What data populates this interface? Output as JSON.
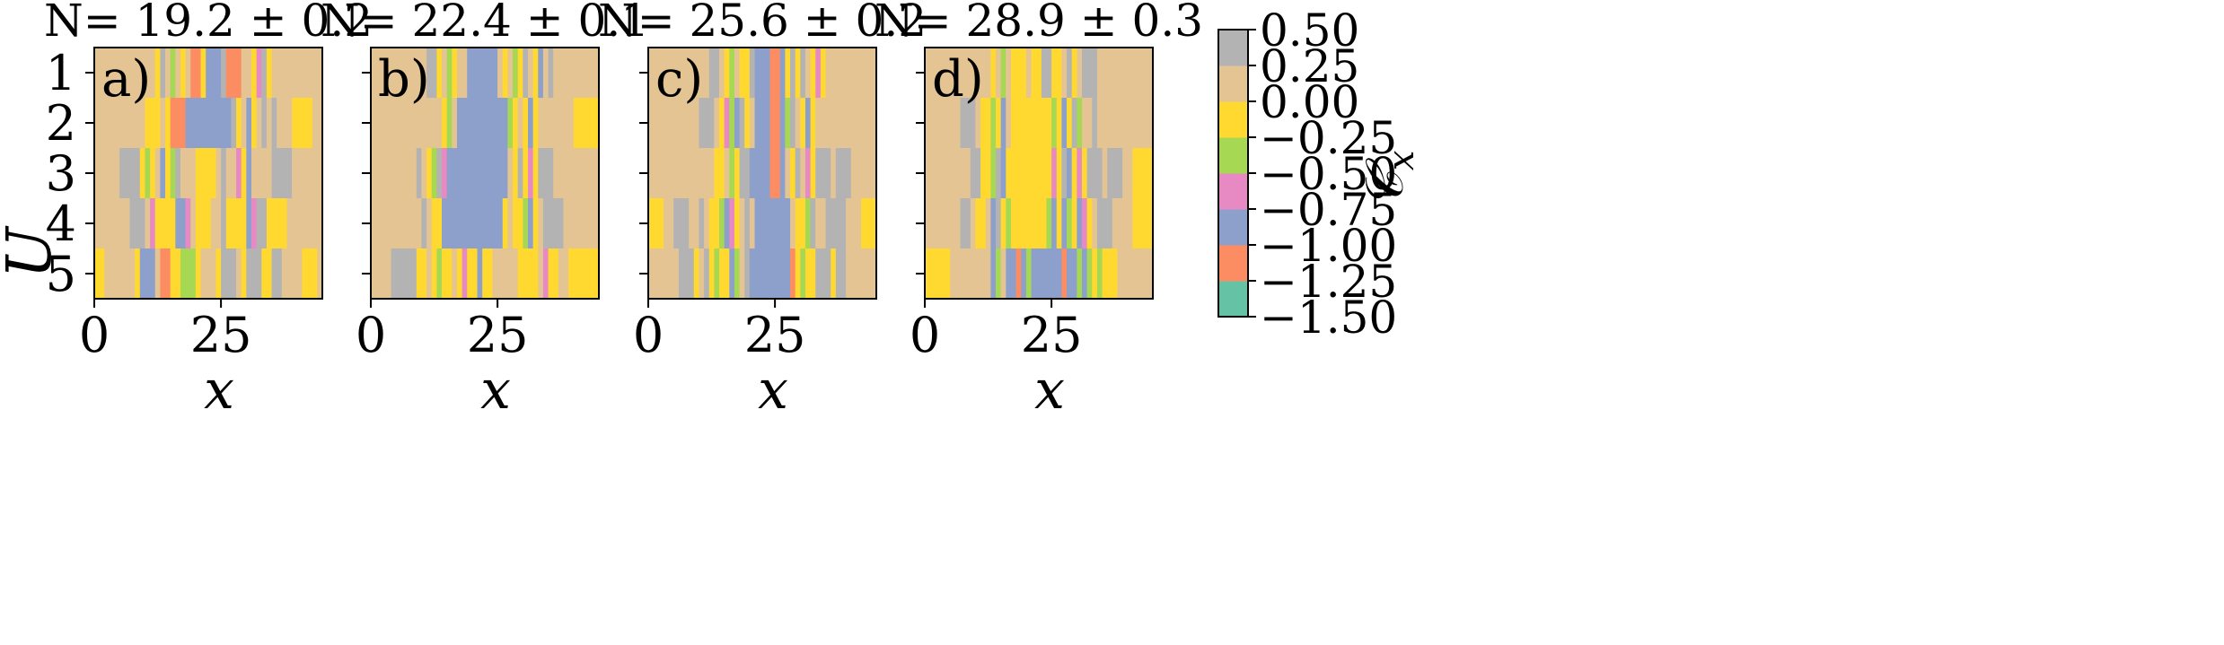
{
  "chart_data": {
    "type": "heatmap",
    "panels": [
      {
        "title": "N̄= 19.2 ± 0.2",
        "label": "a)",
        "rows": [
          [
            0.1,
            0.1,
            0.1,
            0.1,
            0.1,
            0.1,
            0.1,
            0.1,
            0.1,
            0.1,
            0.1,
            0.1,
            -0.25,
            0.35,
            0.1,
            -0.5,
            0.1,
            -0.25,
            0.1,
            -1.1,
            -1.1,
            -0.25,
            -0.85,
            -0.85,
            -0.85,
            0.35,
            -1.1,
            -1.1,
            -1.1,
            0.1,
            0.1,
            -0.25,
            -0.6,
            0.35,
            -0.25,
            0.1,
            0.1,
            0.1,
            0.1,
            0.1,
            0.1,
            0.1,
            0.1,
            0.1,
            0.1
          ],
          [
            0.1,
            0.1,
            0.1,
            0.1,
            0.1,
            0.1,
            0.1,
            0.1,
            0.1,
            0.1,
            -0.1,
            -0.1,
            -0.1,
            0.1,
            -0.1,
            -1.1,
            -1.1,
            -1.1,
            -0.85,
            -0.85,
            -0.85,
            -0.85,
            -0.85,
            -0.85,
            -0.85,
            -0.85,
            -0.85,
            0.35,
            -0.1,
            0.1,
            -0.85,
            -0.25,
            0.1,
            0.35,
            0.1,
            0.35,
            0.1,
            0.1,
            0.1,
            -0.1,
            -0.1,
            -0.1,
            -0.1,
            0.1,
            0.1
          ],
          [
            0.1,
            0.1,
            0.1,
            0.1,
            0.1,
            0.35,
            0.35,
            0.35,
            0.35,
            -0.1,
            -0.5,
            -0.25,
            0.1,
            -0.85,
            -0.1,
            -0.5,
            0.35,
            0.1,
            0.1,
            0.1,
            -0.1,
            -0.1,
            -0.25,
            -0.1,
            0.1,
            0.35,
            0.1,
            0.1,
            -0.6,
            -0.25,
            -0.85,
            0.1,
            0.1,
            0.1,
            0.1,
            0.35,
            0.35,
            0.35,
            0.35,
            0.1,
            0.1,
            0.1,
            0.1,
            0.1,
            0.1
          ],
          [
            0.1,
            0.1,
            0.1,
            0.1,
            0.1,
            0.1,
            0.1,
            0.35,
            0.35,
            0.35,
            0.1,
            -0.6,
            -0.1,
            -0.25,
            -0.1,
            -0.1,
            -0.85,
            -0.85,
            -0.6,
            0.1,
            -0.1,
            -0.25,
            -0.1,
            0.1,
            0.1,
            0.35,
            -0.1,
            -0.1,
            -0.1,
            -0.25,
            -0.85,
            -0.6,
            0.35,
            0.35,
            -0.1,
            -0.1,
            -0.1,
            -0.1,
            0.1,
            0.1,
            0.1,
            0.1,
            0.1,
            0.1,
            0.1
          ],
          [
            -0.1,
            -0.1,
            0.1,
            0.1,
            0.1,
            0.1,
            0.1,
            0.1,
            -0.25,
            -0.85,
            -0.85,
            -0.85,
            0.1,
            -1.1,
            -1.1,
            -0.1,
            -0.25,
            -0.5,
            -0.5,
            -0.5,
            -0.1,
            0.1,
            0.1,
            0.1,
            -0.1,
            0.35,
            0.35,
            0.35,
            0.1,
            -0.1,
            0.35,
            0.35,
            0.35,
            -0.1,
            -0.25,
            0.35,
            0.35,
            0.1,
            0.1,
            0.1,
            0.1,
            -0.1,
            -0.1,
            -0.1,
            0.1
          ]
        ]
      },
      {
        "title": "N̄= 22.4 ± 0.1",
        "label": "b)",
        "rows": [
          [
            0.1,
            0.1,
            0.1,
            0.1,
            0.1,
            0.1,
            0.1,
            0.1,
            0.1,
            0.1,
            0.1,
            0.35,
            0.35,
            -0.1,
            0.1,
            -0.5,
            -0.1,
            0.1,
            0.1,
            -0.85,
            -0.85,
            -0.85,
            -0.85,
            -0.85,
            -0.85,
            0.1,
            -0.1,
            0.1,
            -0.5,
            -0.1,
            0.35,
            0.1,
            -0.25,
            -0.85,
            0.1,
            0.35,
            0.1,
            0.1,
            0.1,
            0.1,
            0.1,
            0.1,
            0.1,
            0.1,
            0.1
          ],
          [
            0.1,
            0.1,
            0.1,
            0.1,
            0.1,
            0.1,
            0.1,
            0.1,
            0.1,
            0.1,
            0.1,
            0.1,
            0.1,
            0.1,
            -0.1,
            -0.5,
            0.1,
            -0.85,
            -0.85,
            -0.85,
            -0.85,
            -0.85,
            -0.85,
            -0.85,
            -0.85,
            -0.85,
            -0.85,
            -0.5,
            -0.1,
            0.1,
            -0.1,
            -0.85,
            -0.25,
            0.1,
            0.1,
            0.1,
            0.1,
            0.1,
            0.1,
            0.1,
            -0.1,
            -0.1,
            -0.1,
            -0.1,
            -0.1
          ],
          [
            0.1,
            0.1,
            0.1,
            0.1,
            0.1,
            0.1,
            0.1,
            0.1,
            0.1,
            0.35,
            0.1,
            -0.25,
            -0.5,
            0.35,
            -0.6,
            -0.85,
            -0.85,
            -0.85,
            -0.85,
            -0.85,
            -0.85,
            -0.85,
            -0.85,
            -0.85,
            -0.85,
            -0.85,
            -0.85,
            0.1,
            -0.25,
            0.35,
            -0.1,
            -0.6,
            -0.1,
            0.35,
            0.35,
            0.35,
            0.1,
            0.1,
            0.1,
            0.1,
            0.1,
            0.1,
            0.1,
            0.1,
            0.1
          ],
          [
            0.1,
            0.1,
            0.1,
            0.1,
            0.1,
            0.1,
            0.1,
            0.1,
            0.1,
            0.1,
            0.35,
            0.1,
            -0.1,
            -0.25,
            -0.85,
            -0.85,
            -0.85,
            -0.85,
            -0.85,
            -0.85,
            -0.85,
            -0.85,
            -0.85,
            -0.85,
            -0.85,
            -0.85,
            -0.1,
            0.1,
            -0.1,
            -0.1,
            -0.5,
            -0.85,
            -0.1,
            0.1,
            0.35,
            0.35,
            0.35,
            0.35,
            0.1,
            0.1,
            0.1,
            0.1,
            0.1,
            0.1,
            0.1
          ],
          [
            0.1,
            0.1,
            0.1,
            0.1,
            0.35,
            0.35,
            0.35,
            0.35,
            0.35,
            -0.25,
            -0.25,
            0.1,
            -0.25,
            -0.5,
            -0.25,
            -0.1,
            0.1,
            -0.25,
            -0.6,
            -0.1,
            -0.25,
            -0.85,
            -0.1,
            -0.1,
            0.1,
            0.1,
            0.1,
            0.1,
            0.1,
            -0.1,
            -0.1,
            -0.25,
            -0.1,
            0.1,
            -0.6,
            -0.1,
            -0.25,
            0.1,
            0.1,
            -0.1,
            -0.1,
            -0.1,
            -0.1,
            -0.1,
            -0.1
          ]
        ]
      },
      {
        "title": "N̄= 25.6 ± 0.2",
        "label": "c)",
        "rows": [
          [
            0.1,
            0.1,
            0.1,
            0.1,
            0.1,
            0.1,
            0.1,
            0.1,
            0.1,
            0.1,
            0.1,
            0.1,
            0.35,
            0.35,
            0.1,
            -0.1,
            -0.5,
            0.1,
            -0.25,
            -0.1,
            0.35,
            -0.85,
            -0.85,
            -0.85,
            -1.1,
            -1.1,
            -0.85,
            -0.25,
            0.35,
            -0.1,
            0.35,
            0.1,
            -0.25,
            -0.6,
            -0.1,
            0.1,
            0.1,
            0.1,
            0.1,
            0.1,
            0.1,
            0.1,
            0.1,
            0.1,
            0.1
          ],
          [
            0.1,
            0.1,
            0.1,
            0.1,
            0.1,
            0.1,
            0.1,
            0.1,
            0.1,
            0.1,
            0.35,
            0.35,
            0.35,
            0.1,
            -0.1,
            -0.6,
            -0.5,
            -0.85,
            0.35,
            -0.1,
            0.1,
            -0.85,
            -0.85,
            -0.85,
            -1.1,
            -1.1,
            -0.85,
            -0.5,
            0.35,
            0.1,
            -0.1,
            -0.85,
            -0.25,
            0.1,
            0.1,
            0.1,
            0.1,
            0.1,
            0.1,
            0.1,
            0.1,
            0.1,
            0.1,
            0.1,
            0.1
          ],
          [
            0.1,
            0.1,
            0.1,
            0.1,
            0.1,
            0.1,
            0.1,
            0.1,
            0.1,
            0.1,
            0.1,
            0.1,
            0.1,
            -0.1,
            -0.25,
            0.1,
            -0.5,
            -0.1,
            0.35,
            0.35,
            -0.85,
            -0.85,
            -0.85,
            -0.85,
            -1.1,
            -1.1,
            -0.85,
            0.1,
            -0.25,
            0.35,
            0.1,
            -0.6,
            -0.1,
            0.35,
            0.35,
            0.35,
            0.1,
            0.35,
            0.35,
            0.35,
            0.1,
            0.1,
            0.1,
            0.1,
            0.1
          ],
          [
            -0.1,
            -0.1,
            -0.1,
            0.1,
            0.1,
            0.35,
            0.35,
            0.35,
            0.1,
            0.1,
            0.35,
            0.1,
            -0.1,
            -0.25,
            -0.5,
            -0.85,
            -0.6,
            -0.1,
            0.1,
            0.35,
            0.1,
            -0.85,
            -0.85,
            -0.85,
            -0.85,
            -0.85,
            -0.85,
            -0.85,
            0.1,
            -0.25,
            -0.1,
            -0.5,
            0.35,
            0.1,
            0.1,
            0.35,
            0.35,
            0.35,
            0.35,
            0.1,
            0.1,
            0.1,
            -0.1,
            -0.1,
            -0.1
          ],
          [
            0.1,
            0.1,
            0.1,
            0.1,
            0.1,
            0.1,
            0.35,
            0.35,
            0.35,
            -0.1,
            0.1,
            0.35,
            -0.25,
            -0.5,
            -0.1,
            -0.25,
            -0.85,
            -0.5,
            0.1,
            0.35,
            -0.85,
            -0.85,
            -0.85,
            -0.85,
            -0.85,
            -0.85,
            -0.85,
            -0.85,
            -1.1,
            -0.1,
            -0.5,
            -0.25,
            -0.1,
            0.35,
            0.35,
            0.35,
            -0.1,
            0.35,
            0.35,
            0.1,
            0.1,
            0.1,
            0.1,
            0.1,
            0.1
          ]
        ]
      },
      {
        "title": "N̄= 28.9 ± 0.3",
        "label": "d)",
        "rows": [
          [
            0.1,
            0.1,
            0.1,
            0.1,
            0.1,
            0.1,
            0.1,
            0.1,
            0.1,
            0.1,
            0.1,
            0.1,
            0.1,
            -0.25,
            0.1,
            -0.5,
            0.1,
            -0.25,
            -0.25,
            -0.25,
            0.1,
            -0.25,
            -0.25,
            0.35,
            0.35,
            -0.1,
            -0.25,
            0.1,
            0.35,
            -0.1,
            0.1,
            0.35,
            0.35,
            0.35,
            0.1,
            0.1,
            0.1,
            0.1,
            0.1,
            0.1,
            0.1,
            0.1,
            0.1,
            0.1,
            0.1
          ],
          [
            0.1,
            0.1,
            0.1,
            0.1,
            0.1,
            0.1,
            0.1,
            0.35,
            0.35,
            0.35,
            0.1,
            -0.25,
            -0.1,
            -0.5,
            -0.25,
            -0.85,
            0.1,
            -0.1,
            -0.25,
            -0.25,
            -0.25,
            -0.25,
            -0.25,
            -0.1,
            -0.1,
            -0.5,
            -0.25,
            -0.85,
            -0.1,
            0.35,
            -0.5,
            0.1,
            0.1,
            0.35,
            0.1,
            0.1,
            0.1,
            0.1,
            0.1,
            0.1,
            0.1,
            0.1,
            0.1,
            0.1,
            0.1
          ],
          [
            0.1,
            0.1,
            0.1,
            0.1,
            0.1,
            0.1,
            0.1,
            0.1,
            0.1,
            0.35,
            0.35,
            -0.1,
            -0.25,
            -0.5,
            0.35,
            -0.85,
            -0.1,
            -0.1,
            -0.25,
            -0.25,
            -0.25,
            -0.1,
            -0.1,
            -0.25,
            -0.25,
            -0.6,
            -0.1,
            0.35,
            -0.85,
            -0.25,
            -0.6,
            -0.1,
            0.35,
            0.35,
            0.35,
            0.1,
            0.35,
            0.35,
            0.35,
            0.1,
            0.1,
            -0.1,
            -0.1,
            -0.1,
            -0.1
          ],
          [
            0.1,
            0.1,
            0.1,
            0.1,
            0.1,
            0.1,
            0.1,
            0.35,
            0.35,
            0.1,
            -0.1,
            -0.25,
            0.1,
            -0.85,
            0.35,
            -0.1,
            -0.5,
            -0.1,
            -0.25,
            -0.25,
            -0.25,
            -0.25,
            -0.25,
            -0.1,
            -0.5,
            -0.85,
            -0.25,
            -0.85,
            -0.5,
            -0.1,
            -0.85,
            -0.6,
            -0.1,
            0.1,
            0.35,
            0.35,
            0.35,
            0.1,
            0.1,
            0.1,
            0.1,
            -0.1,
            -0.1,
            -0.1,
            -0.1
          ],
          [
            -0.1,
            -0.1,
            -0.1,
            -0.1,
            -0.1,
            0.1,
            0.1,
            0.1,
            0.1,
            0.1,
            0.1,
            0.1,
            0.1,
            -0.85,
            -0.5,
            0.1,
            -0.85,
            -0.85,
            -1.1,
            -0.85,
            -0.5,
            -0.85,
            -0.85,
            -0.85,
            -0.85,
            -0.85,
            -0.85,
            -1.1,
            -0.85,
            -0.85,
            -0.5,
            -0.85,
            -0.5,
            -0.1,
            -0.5,
            -0.1,
            -0.1,
            -0.1,
            0.1,
            0.1,
            0.1,
            0.1,
            0.1,
            0.1,
            0.1
          ]
        ]
      }
    ],
    "row_labels": [
      "1",
      "2",
      "3",
      "4",
      "5"
    ],
    "x_ticks": [
      0,
      25
    ],
    "xlim": [
      0,
      45
    ],
    "xlabel": "x",
    "ylabel": "U",
    "colorbar": {
      "label": "𝒞",
      "label_sub": "x",
      "ticks": [
        "0.50",
        "0.25",
        "0.00",
        "−0.25",
        "−0.50",
        "−0.75",
        "−1.00",
        "−1.25",
        "−1.50"
      ],
      "range": [
        -1.5,
        0.5
      ],
      "colors": [
        "#66c2a5",
        "#fc8d62",
        "#8da0cb",
        "#e78ac3",
        "#a6d854",
        "#ffd92f",
        "#e5c494",
        "#b3b3b3"
      ]
    }
  }
}
